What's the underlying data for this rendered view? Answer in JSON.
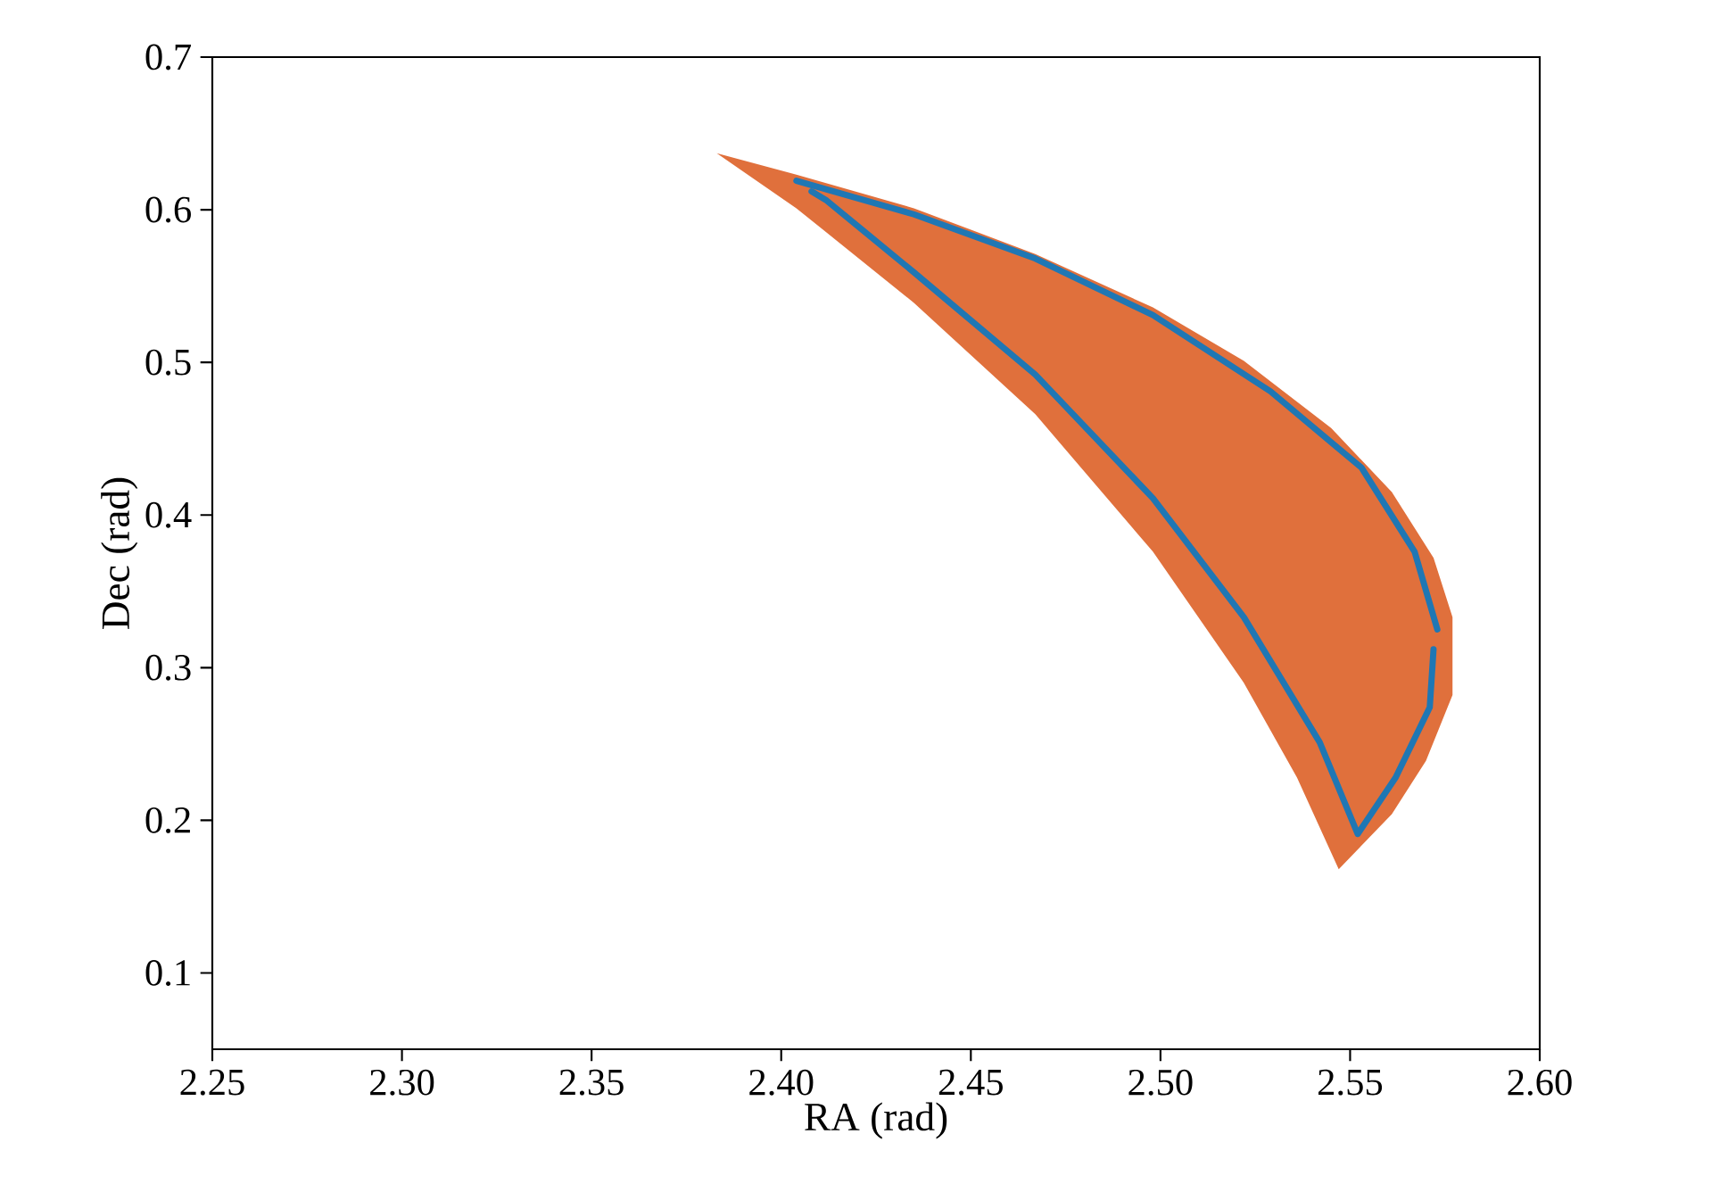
{
  "chart_data": {
    "type": "line",
    "xlabel": "RA (rad)",
    "ylabel": "Dec (rad)",
    "xlim": [
      2.25,
      2.6
    ],
    "ylim": [
      0.05,
      0.7
    ],
    "xticks": [
      {
        "value": 2.25,
        "label": "2.25"
      },
      {
        "value": 2.3,
        "label": "2.30"
      },
      {
        "value": 2.35,
        "label": "2.35"
      },
      {
        "value": 2.4,
        "label": "2.40"
      },
      {
        "value": 2.45,
        "label": "2.45"
      },
      {
        "value": 2.5,
        "label": "2.50"
      },
      {
        "value": 2.55,
        "label": "2.55"
      },
      {
        "value": 2.6,
        "label": "2.60"
      }
    ],
    "yticks": [
      0.1,
      0.2,
      0.3,
      0.4,
      0.5,
      0.6,
      0.7
    ],
    "grid": false,
    "series": [
      {
        "type": "area",
        "color": "#e0703c",
        "x": [
          2.383,
          2.404,
          2.435,
          2.467,
          2.498,
          2.522,
          2.545,
          2.561,
          2.572,
          2.577,
          2.577,
          2.57,
          2.561,
          2.547,
          2.536,
          2.522,
          2.498,
          2.467,
          2.435,
          2.404,
          2.383
        ],
        "values": [
          0.637,
          0.623,
          0.601,
          0.571,
          0.536,
          0.501,
          0.457,
          0.415,
          0.372,
          0.333,
          0.282,
          0.239,
          0.204,
          0.168,
          0.228,
          0.29,
          0.376,
          0.466,
          0.539,
          0.601,
          0.637
        ]
      },
      {
        "color": "#1f77b4",
        "x": [
          2.404,
          2.435,
          2.467,
          2.498,
          2.529,
          2.553,
          2.567,
          2.573
        ],
        "values": [
          0.619,
          0.597,
          0.568,
          0.531,
          0.481,
          0.431,
          0.376,
          0.325
        ]
      },
      {
        "color": "#1f77b4",
        "x": [
          2.408,
          2.412,
          2.435,
          2.467,
          2.498,
          2.522,
          2.542,
          2.552,
          2.562,
          2.571,
          2.572
        ],
        "values": [
          0.612,
          0.606,
          0.559,
          0.492,
          0.411,
          0.333,
          0.251,
          0.191,
          0.228,
          0.274,
          0.312
        ]
      }
    ]
  }
}
